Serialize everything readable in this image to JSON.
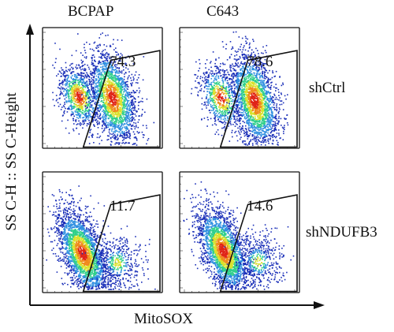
{
  "chart_data": {
    "type": "scatter",
    "subtype": "flow-cytometry-density-plots",
    "title": "",
    "xlabel": "MitoSOX",
    "ylabel": "SS C-H :: SS C-Height",
    "columns": [
      "BCPAP",
      "C643"
    ],
    "rows": [
      "shCtrl",
      "shNDUFB3"
    ],
    "grid": false,
    "panels": [
      {
        "column": "BCPAP",
        "row": "shCtrl",
        "gate_percent": 74.3,
        "gate_label": "74.3"
      },
      {
        "column": "C643",
        "row": "shCtrl",
        "gate_percent": 78.6,
        "gate_label": "78.6"
      },
      {
        "column": "BCPAP",
        "row": "shNDUFB3",
        "gate_percent": 11.7,
        "gate_label": "11.7"
      },
      {
        "column": "C643",
        "row": "shNDUFB3",
        "gate_percent": 14.6,
        "gate_label": "14.6"
      }
    ],
    "density_colors": [
      "#1a2fb8",
      "#2f8fe0",
      "#2fcf8a",
      "#d9e12b",
      "#f08a1d",
      "#e02418"
    ]
  }
}
